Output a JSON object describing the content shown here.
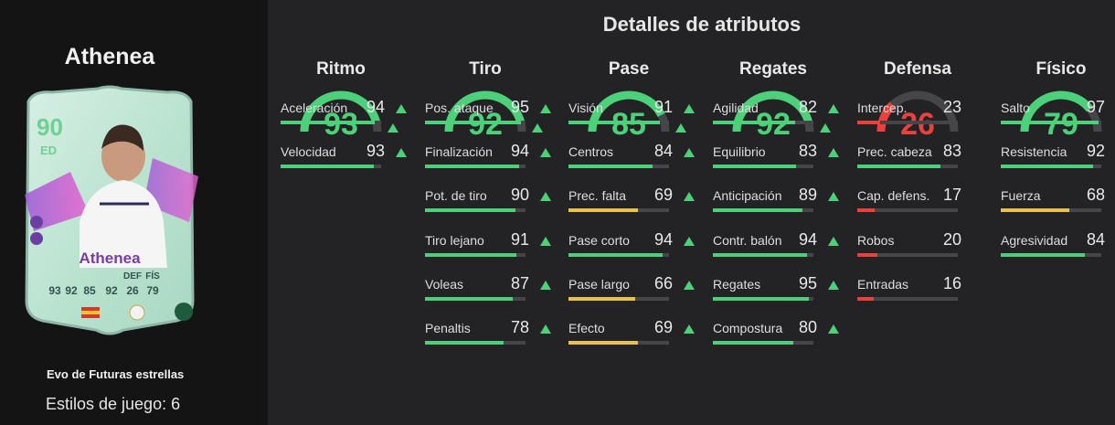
{
  "header": {
    "title": "Detalles de atributos"
  },
  "player": {
    "name": "Athenea",
    "card": {
      "overall": "90",
      "position": "ED",
      "name": "Athenea",
      "stats": [
        {
          "label": "",
          "value": "93"
        },
        {
          "label": "",
          "value": "92"
        },
        {
          "label": "",
          "value": "85"
        },
        {
          "label": "",
          "value": "92"
        },
        {
          "label": "DEF",
          "value": "26"
        },
        {
          "label": "FÍS",
          "value": "79"
        }
      ]
    },
    "evolution": "Evo de Futuras estrellas",
    "playstyles": "Estilos de juego: 6"
  },
  "colors": {
    "green": "#4cd17a",
    "yellow": "#e8c24a",
    "red": "#e8413e",
    "track": "#464649",
    "card_mint": "#bfe4d4",
    "card_purple": "#7b3ba4"
  },
  "categories": [
    {
      "name": "Ritmo",
      "value": 93,
      "color": "green",
      "stats": [
        {
          "label": "Aceleración",
          "value": 94,
          "color": "green",
          "up": true
        },
        {
          "label": "Velocidad",
          "value": 93,
          "color": "green",
          "up": true
        }
      ]
    },
    {
      "name": "Tiro",
      "value": 92,
      "color": "green",
      "stats": [
        {
          "label": "Pos. ataque",
          "value": 95,
          "color": "green",
          "up": true
        },
        {
          "label": "Finalización",
          "value": 94,
          "color": "green",
          "up": true
        },
        {
          "label": "Pot. de tiro",
          "value": 90,
          "color": "green",
          "up": true
        },
        {
          "label": "Tiro lejano",
          "value": 91,
          "color": "green",
          "up": true
        },
        {
          "label": "Voleas",
          "value": 87,
          "color": "green",
          "up": true
        },
        {
          "label": "Penaltis",
          "value": 78,
          "color": "green",
          "up": true
        }
      ]
    },
    {
      "name": "Pase",
      "value": 85,
      "color": "green",
      "stats": [
        {
          "label": "Visión",
          "value": 91,
          "color": "green",
          "up": true
        },
        {
          "label": "Centros",
          "value": 84,
          "color": "green",
          "up": true
        },
        {
          "label": "Prec. falta",
          "value": 69,
          "color": "yellow",
          "up": true
        },
        {
          "label": "Pase corto",
          "value": 94,
          "color": "green",
          "up": true
        },
        {
          "label": "Pase largo",
          "value": 66,
          "color": "yellow",
          "up": true
        },
        {
          "label": "Efecto",
          "value": 69,
          "color": "yellow",
          "up": true
        }
      ]
    },
    {
      "name": "Regates",
      "value": 92,
      "color": "green",
      "stats": [
        {
          "label": "Agilidad",
          "value": 82,
          "color": "green",
          "up": true
        },
        {
          "label": "Equilibrio",
          "value": 83,
          "color": "green",
          "up": true
        },
        {
          "label": "Anticipación",
          "value": 89,
          "color": "green",
          "up": true
        },
        {
          "label": "Contr. balón",
          "value": 94,
          "color": "green",
          "up": true
        },
        {
          "label": "Regates",
          "value": 95,
          "color": "green",
          "up": true
        },
        {
          "label": "Compostura",
          "value": 80,
          "color": "green",
          "up": true
        }
      ]
    },
    {
      "name": "Defensa",
      "value": 26,
      "color": "red",
      "stats": [
        {
          "label": "Intercep.",
          "value": 23,
          "color": "red",
          "up": false
        },
        {
          "label": "Prec. cabeza",
          "value": 83,
          "color": "green",
          "up": false
        },
        {
          "label": "Cap. defens.",
          "value": 17,
          "color": "red",
          "up": false
        },
        {
          "label": "Robos",
          "value": 20,
          "color": "red",
          "up": false
        },
        {
          "label": "Entradas",
          "value": 16,
          "color": "red",
          "up": false
        }
      ]
    },
    {
      "name": "Físico",
      "value": 79,
      "color": "green",
      "stats": [
        {
          "label": "Salto",
          "value": 97,
          "color": "green",
          "up": false
        },
        {
          "label": "Resistencia",
          "value": 92,
          "color": "green",
          "up": false
        },
        {
          "label": "Fuerza",
          "value": 68,
          "color": "yellow",
          "up": false
        },
        {
          "label": "Agresividad",
          "value": 84,
          "color": "green",
          "up": false
        }
      ]
    }
  ]
}
